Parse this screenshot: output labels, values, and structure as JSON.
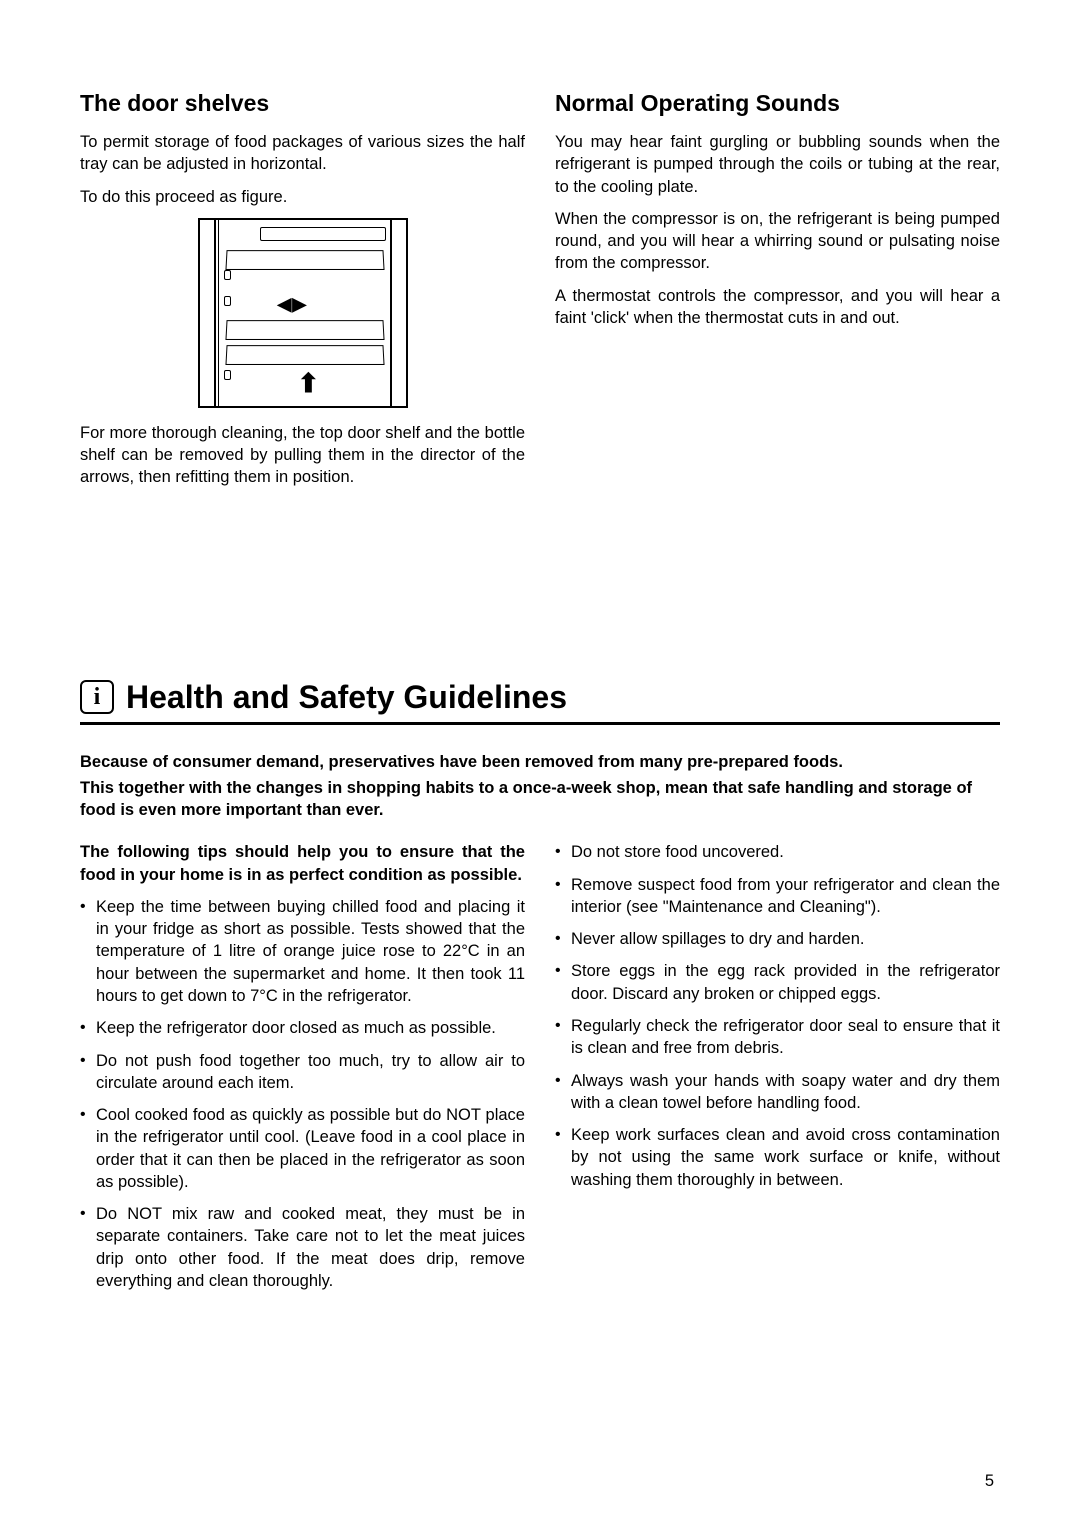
{
  "section1": {
    "left": {
      "heading": "The door shelves",
      "p1": "To permit storage of food packages of various sizes the half tray can be adjusted in horizontal.",
      "p2": "To do this proceed as figure.",
      "p3": "For more thorough cleaning, the top door shelf and the bottle shelf can be removed by pulling them in the director of the arrows, then refitting them in position."
    },
    "right": {
      "heading": "Normal Operating Sounds",
      "p1": "You may hear faint gurgling or bubbling sounds when the refrigerant is pumped through the coils or tubing at the rear, to the cooling plate.",
      "p2": "When the compressor is on, the refrigerant is being pumped round, and you will hear a whirring sound or pulsating noise from the compressor.",
      "p3": "A thermostat controls the compressor, and you will hear a faint 'click' when the thermostat cuts in and out."
    }
  },
  "section2": {
    "title": "Health and Safety Guidelines",
    "intro1": "Because of consumer demand, preservatives have been removed from many pre-prepared foods.",
    "intro2": "This together with the changes in shopping habits to a once-a-week shop, mean that safe handling and storage of food is even more important than ever.",
    "tipsLead": "The following tips should help you to ensure that the food in your home is in as perfect condition as possible.",
    "leftTips": [
      "Keep the time between buying chilled food and placing it in your fridge as short as possible. Tests showed that the temperature of 1 litre of orange juice rose to 22°C in an hour between the supermarket and home. It then took 11 hours to get down to 7°C in the refrigerator.",
      "Keep the refrigerator door closed as much as possible.",
      "Do not push food together too much, try to allow air to circulate around each item.",
      "Cool cooked food as quickly as possible but do NOT place in the refrigerator until cool. (Leave food in a cool place in order that it can then be placed in the refrigerator as soon as possible).",
      "Do NOT mix raw and cooked meat, they must be in separate containers. Take care not to let the meat juices drip onto other food. If the meat does drip, remove everything and clean thoroughly."
    ],
    "rightTips": [
      "Do not store food uncovered.",
      "Remove suspect food from your refrigerator and clean the interior (see \"Maintenance and Cleaning\").",
      "Never allow spillages to dry and harden.",
      "Store eggs in the egg rack provided in the refrigerator door. Discard any broken or chipped eggs.",
      "Regularly check the refrigerator door seal to ensure that it is clean and free from debris.",
      "Always wash your hands with soapy water and dry them with a clean towel before handling food.",
      "Keep work surfaces clean and avoid cross contamination by not using the same work surface or knife, without washing them thoroughly in between."
    ]
  },
  "pageNumber": "5",
  "infoIconGlyph": "i"
}
